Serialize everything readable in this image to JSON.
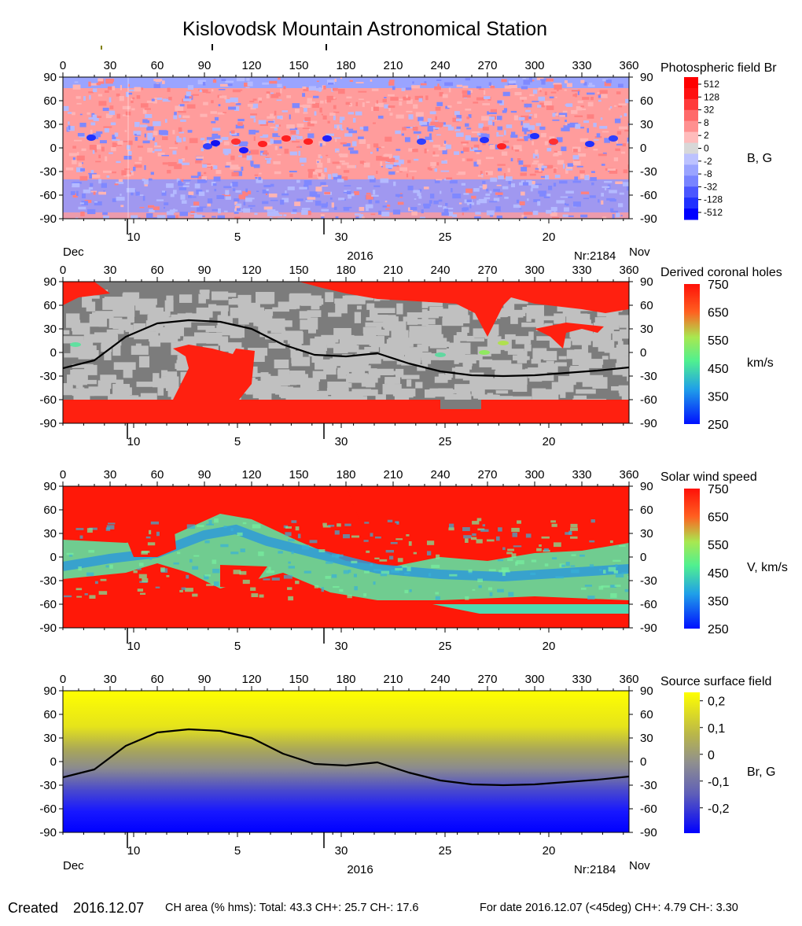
{
  "title": "Kislovodsk Mountain Astronomical Station",
  "longitude_ticks": [
    0,
    30,
    60,
    90,
    120,
    150,
    180,
    210,
    240,
    270,
    300,
    330,
    360
  ],
  "latitude_ticks": [
    90,
    60,
    30,
    0,
    -30,
    -60,
    -90
  ],
  "date_ticks": [
    {
      "label": "10",
      "lon": 45
    },
    {
      "label": "5",
      "lon": 111
    },
    {
      "label": "30",
      "lon": 177
    },
    {
      "label": "25",
      "lon": 243
    },
    {
      "label": "20",
      "lon": 309
    }
  ],
  "month_marks": [
    {
      "lon": 166
    },
    {
      "lon": 41
    }
  ],
  "bottom_labels": {
    "dec": "Dec",
    "year": "2016",
    "rotation": "Nr:2184",
    "nov": "Nov"
  },
  "footer": {
    "created_label": "Created",
    "created_date": "2016.12.07",
    "ch_area": "CH area (% hms): Total: 43.3 CH+: 25.7    CH-: 17.6",
    "for_date": "For date 2016.12.07 (<45deg) CH+: 4.79    CH-: 3.30"
  },
  "chart_data": [
    {
      "type": "heatmap",
      "title": "Photospheric field Br",
      "unit_label": "B, G",
      "xlim": [
        0,
        360
      ],
      "ylim": [
        -90,
        90
      ],
      "colorbar": {
        "labels": [
          "512",
          "128",
          "32",
          "8",
          "2",
          "0",
          "-2",
          "-8",
          "-32",
          "-128",
          "-512"
        ]
      },
      "colors": {
        "positive": "#ff3030",
        "weak_positive": "#ff9c9c",
        "neutral": "#d8d8d8",
        "weak_negative": "#9ea8ff",
        "negative": "#2020ff"
      }
    },
    {
      "type": "heatmap",
      "title": "Derived coronal holes",
      "unit_label": "km/s",
      "xlim": [
        0,
        360
      ],
      "ylim": [
        -90,
        90
      ],
      "colorbar": {
        "labels": [
          "750",
          "650",
          "550",
          "450",
          "350",
          "250"
        ]
      },
      "colors": {
        "hole": "#ff2010",
        "closed_light": "#c0c0c0",
        "closed_dark": "#7c7c7c"
      },
      "neutral_line": {
        "lon": [
          0,
          20,
          40,
          60,
          80,
          100,
          120,
          140,
          160,
          180,
          200,
          220,
          240,
          260,
          280,
          300,
          320,
          340,
          360
        ],
        "lat": [
          -20,
          -10,
          20,
          37,
          41,
          39,
          30,
          10,
          -3,
          -5,
          -1,
          -14,
          -24,
          -29,
          -30,
          -29,
          -26,
          -23,
          -19
        ]
      }
    },
    {
      "type": "heatmap",
      "title": "Solar wind speed",
      "unit_label": "V, km/s",
      "xlim": [
        0,
        360
      ],
      "ylim": [
        -90,
        90
      ],
      "colorbar": {
        "labels": [
          "750",
          "650",
          "550",
          "450",
          "350",
          "250"
        ]
      },
      "colors": {
        "fast": "#ff1808",
        "mid": "#50f0a0",
        "slow": "#2e9ad8"
      }
    },
    {
      "type": "heatmap",
      "title": "Source surface field",
      "unit_label": "Br, G",
      "xlim": [
        0,
        360
      ],
      "ylim": [
        -90,
        90
      ],
      "colorbar": {
        "labels": [
          "0,2",
          "0,1",
          "0",
          "-0,1",
          "-0,2"
        ]
      },
      "colors": {
        "positive": "#ffff00",
        "zero": "#8f8f8f",
        "negative": "#0000ff"
      },
      "neutral_line": {
        "lon": [
          0,
          20,
          40,
          60,
          80,
          100,
          120,
          140,
          160,
          180,
          200,
          220,
          240,
          260,
          280,
          300,
          320,
          340,
          360
        ],
        "lat": [
          -20,
          -10,
          20,
          37,
          41,
          39,
          30,
          10,
          -3,
          -5,
          -1,
          -14,
          -24,
          -29,
          -30,
          -29,
          -26,
          -23,
          -19
        ]
      }
    }
  ]
}
